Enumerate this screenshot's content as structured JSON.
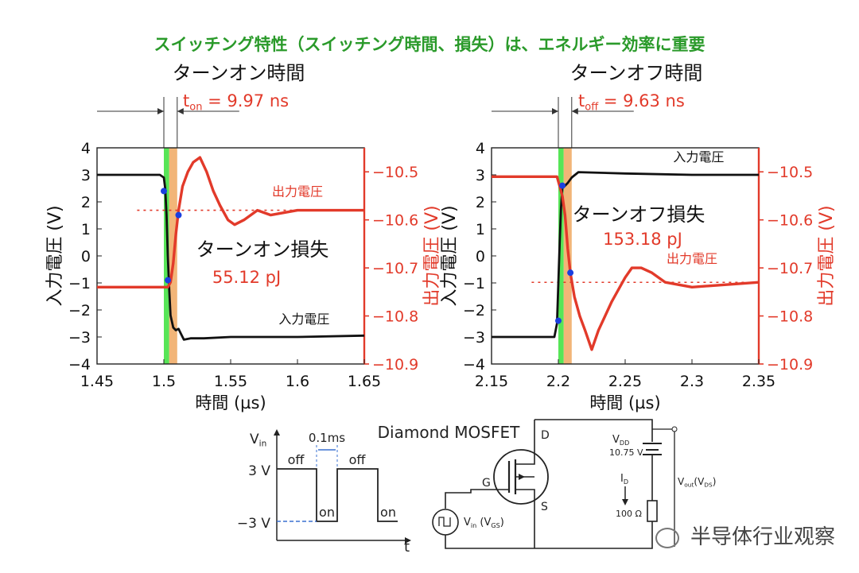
{
  "headline": "スイッチング特性（スイッチング時間、損失）は、エネルギー効率に重要",
  "colors": {
    "black": "#111111",
    "red": "#e23a2a",
    "green": "#3ae03a",
    "orange": "#f0a860",
    "blue": "#1a3fe0",
    "headline": "#2a9a2a"
  },
  "chart_data": [
    {
      "type": "line",
      "title": "ターンオン時間",
      "time_annotation": {
        "main": "t",
        "sub": "on",
        "rest": " = 9.97 ns"
      },
      "loss_label": "ターンオン損失",
      "loss_value": "55.12 pJ",
      "xlabel": "時間 (µs)",
      "ylabel_left": "入力電圧 (V)",
      "ylabel_right": "出力電圧 (V)",
      "xlim": [
        1.45,
        1.65
      ],
      "ylim_left": [
        -4,
        4
      ],
      "ylim_right": [
        -10.9,
        -10.45
      ],
      "x_ticks": [
        "1.45",
        "1.5",
        "1.55",
        "1.6",
        "1.65"
      ],
      "y_ticks_left": [
        "4",
        "3",
        "2",
        "1",
        "0",
        "−1",
        "−2",
        "−3",
        "−4"
      ],
      "y_ticks_right": [
        "−10.5",
        "−10.6",
        "−10.7",
        "−10.8",
        "−10.9"
      ],
      "series": [
        {
          "name": "入力電圧",
          "axis": "left",
          "x": [
            1.45,
            1.497,
            1.5,
            1.501,
            1.502,
            1.503,
            1.504,
            1.505,
            1.507,
            1.509,
            1.511,
            1.513,
            1.515,
            1.52,
            1.53,
            1.55,
            1.6,
            1.65
          ],
          "y": [
            3.0,
            3.0,
            2.9,
            2.5,
            1.5,
            0.0,
            -1.2,
            -2.2,
            -2.65,
            -2.75,
            -2.7,
            -2.9,
            -3.1,
            -3.05,
            -3.05,
            -3.0,
            -3.0,
            -2.95
          ]
        },
        {
          "name": "出力電圧",
          "axis": "right",
          "x": [
            1.45,
            1.503,
            1.505,
            1.507,
            1.509,
            1.511,
            1.514,
            1.518,
            1.522,
            1.527,
            1.532,
            1.537,
            1.542,
            1.548,
            1.553,
            1.56,
            1.57,
            1.58,
            1.6,
            1.65
          ],
          "y": [
            -10.74,
            -10.74,
            -10.73,
            -10.69,
            -10.63,
            -10.58,
            -10.53,
            -10.5,
            -10.48,
            -10.47,
            -10.5,
            -10.54,
            -10.57,
            -10.6,
            -10.61,
            -10.6,
            -10.58,
            -10.59,
            -10.58,
            -10.58
          ]
        }
      ],
      "reference_line_right": -10.58,
      "markers": [
        {
          "x": 1.5,
          "axis": "left",
          "y": 2.4
        },
        {
          "x": 1.503,
          "axis": "left",
          "y": -0.9
        },
        {
          "x": 1.511,
          "axis": "right",
          "y": -10.59
        }
      ],
      "bands": [
        {
          "x0": 1.5,
          "x1": 1.504,
          "color": "green"
        },
        {
          "x0": 1.504,
          "x1": 1.51,
          "color": "orange"
        }
      ],
      "series_labels": [
        {
          "text": "出力電圧",
          "axis": "right",
          "x": 1.6,
          "y": -10.55,
          "color": "red"
        },
        {
          "text": "入力電圧",
          "axis": "left",
          "x": 1.605,
          "y": -2.5,
          "color": "black"
        }
      ]
    },
    {
      "type": "line",
      "title": "ターンオフ時間",
      "time_annotation": {
        "main": "t",
        "sub": "off",
        "rest": " = 9.63 ns"
      },
      "loss_label": "ターンオフ損失",
      "loss_value": "153.18 pJ",
      "xlabel": "時間 (µs)",
      "ylabel_left": "入力電圧 (V)",
      "ylabel_right": "出力電圧 (V)",
      "xlim": [
        2.15,
        2.35
      ],
      "ylim_left": [
        -4,
        4
      ],
      "ylim_right": [
        -10.9,
        -10.45
      ],
      "x_ticks": [
        "2.15",
        "2.2",
        "2.25",
        "2.3",
        "2.35"
      ],
      "y_ticks_left": [
        "4",
        "3",
        "2",
        "1",
        "0",
        "−1",
        "−2",
        "−3",
        "−4"
      ],
      "y_ticks_right": [
        "−10.5",
        "−10.6",
        "−10.7",
        "−10.8",
        "−10.9"
      ],
      "series": [
        {
          "name": "入力電圧",
          "axis": "left",
          "x": [
            2.15,
            2.197,
            2.199,
            2.2,
            2.201,
            2.202,
            2.203,
            2.205,
            2.207,
            2.21,
            2.215,
            2.25,
            2.3,
            2.35
          ],
          "y": [
            -3.0,
            -3.0,
            -2.5,
            -1.0,
            0.5,
            1.8,
            2.5,
            2.6,
            2.7,
            2.9,
            3.1,
            3.05,
            3.0,
            3.0
          ],
          "extra_dip": false
        },
        {
          "name": "出力電圧",
          "axis": "right",
          "x": [
            2.15,
            2.199,
            2.201,
            2.203,
            2.205,
            2.207,
            2.209,
            2.212,
            2.216,
            2.22,
            2.225,
            2.23,
            2.24,
            2.25,
            2.255,
            2.262,
            2.27,
            2.28,
            2.3,
            2.35
          ],
          "y": [
            -10.51,
            -10.51,
            -10.53,
            -10.55,
            -10.59,
            -10.66,
            -10.71,
            -10.76,
            -10.8,
            -10.83,
            -10.87,
            -10.83,
            -10.77,
            -10.72,
            -10.7,
            -10.7,
            -10.71,
            -10.73,
            -10.74,
            -10.73
          ]
        }
      ],
      "reference_line_right": -10.73,
      "markers": [
        {
          "x": 2.2,
          "axis": "left",
          "y": -2.4
        },
        {
          "x": 2.203,
          "axis": "left",
          "y": 2.6
        },
        {
          "x": 2.209,
          "axis": "right",
          "y": -10.71
        }
      ],
      "bands": [
        {
          "x0": 2.2,
          "x1": 2.204,
          "color": "green"
        },
        {
          "x0": 2.204,
          "x1": 2.21,
          "color": "orange"
        }
      ],
      "series_labels": [
        {
          "text": "入力電圧",
          "axis": "left",
          "x": 2.305,
          "y": 3.5,
          "color": "black"
        },
        {
          "text": "出力電圧",
          "axis": "right",
          "x": 2.3,
          "y": -10.69,
          "color": "red"
        }
      ]
    }
  ],
  "diagram": {
    "title": "Diamond MOSFET",
    "vin_label_main": "V",
    "vin_label_sub": "in",
    "level_high": "3 V",
    "level_low": "−3 V",
    "pulse_width": "0.1ms",
    "off1": "off",
    "off2": "off",
    "on1": "on",
    "on2": "on",
    "t_axis": "t",
    "drain": "D",
    "gate": "G",
    "source": "S",
    "vdd_main": "V",
    "vdd_sub": "DD",
    "vdd_value": "10.75 V",
    "id_main": "I",
    "id_sub": "D",
    "resistor": "100 Ω",
    "vout_main": "V",
    "vout_sub": "out",
    "vout_rest": "(V",
    "vout_sub2": "DS",
    "vout_end": ")",
    "src_main": "V",
    "src_sub": "in",
    "src_rest": " (V",
    "src_sub2": "GS",
    "src_end": ")"
  },
  "watermark": "半导体行业观察"
}
